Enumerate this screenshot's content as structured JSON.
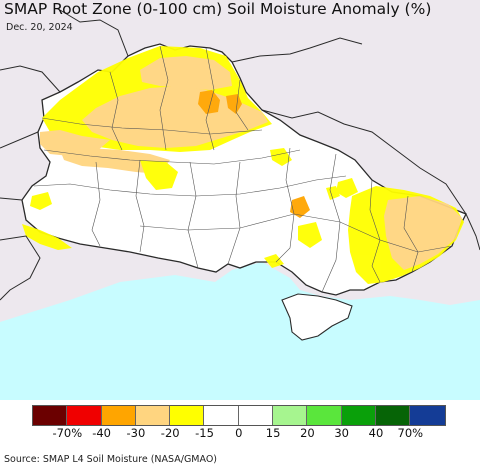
{
  "title": "SMAP Root Zone (0-100 cm) Soil Moisture Anomaly (%)",
  "date": "Dec. 20, 2024",
  "source": "Source: SMAP L4 Soil Moisture (NASA/GMAO)",
  "colors": {
    "land": "#ffffff",
    "outside": "#ede8ee",
    "sea": "#c8fcff",
    "border": "#2a2a2a",
    "oblast_border": "#555555"
  },
  "legend": {
    "colors": [
      "#6b0000",
      "#f00000",
      "#ffa500",
      "#ffd580",
      "#ffff00",
      "#ffffff",
      "#ffffff",
      "#a6f58f",
      "#5ae63c",
      "#0aa00a",
      "#066406",
      "#143c96"
    ],
    "ticks": [
      "-70%",
      "-40",
      "-30",
      "-20",
      "-15",
      "0",
      "15",
      "20",
      "30",
      "40",
      "70%"
    ]
  }
}
